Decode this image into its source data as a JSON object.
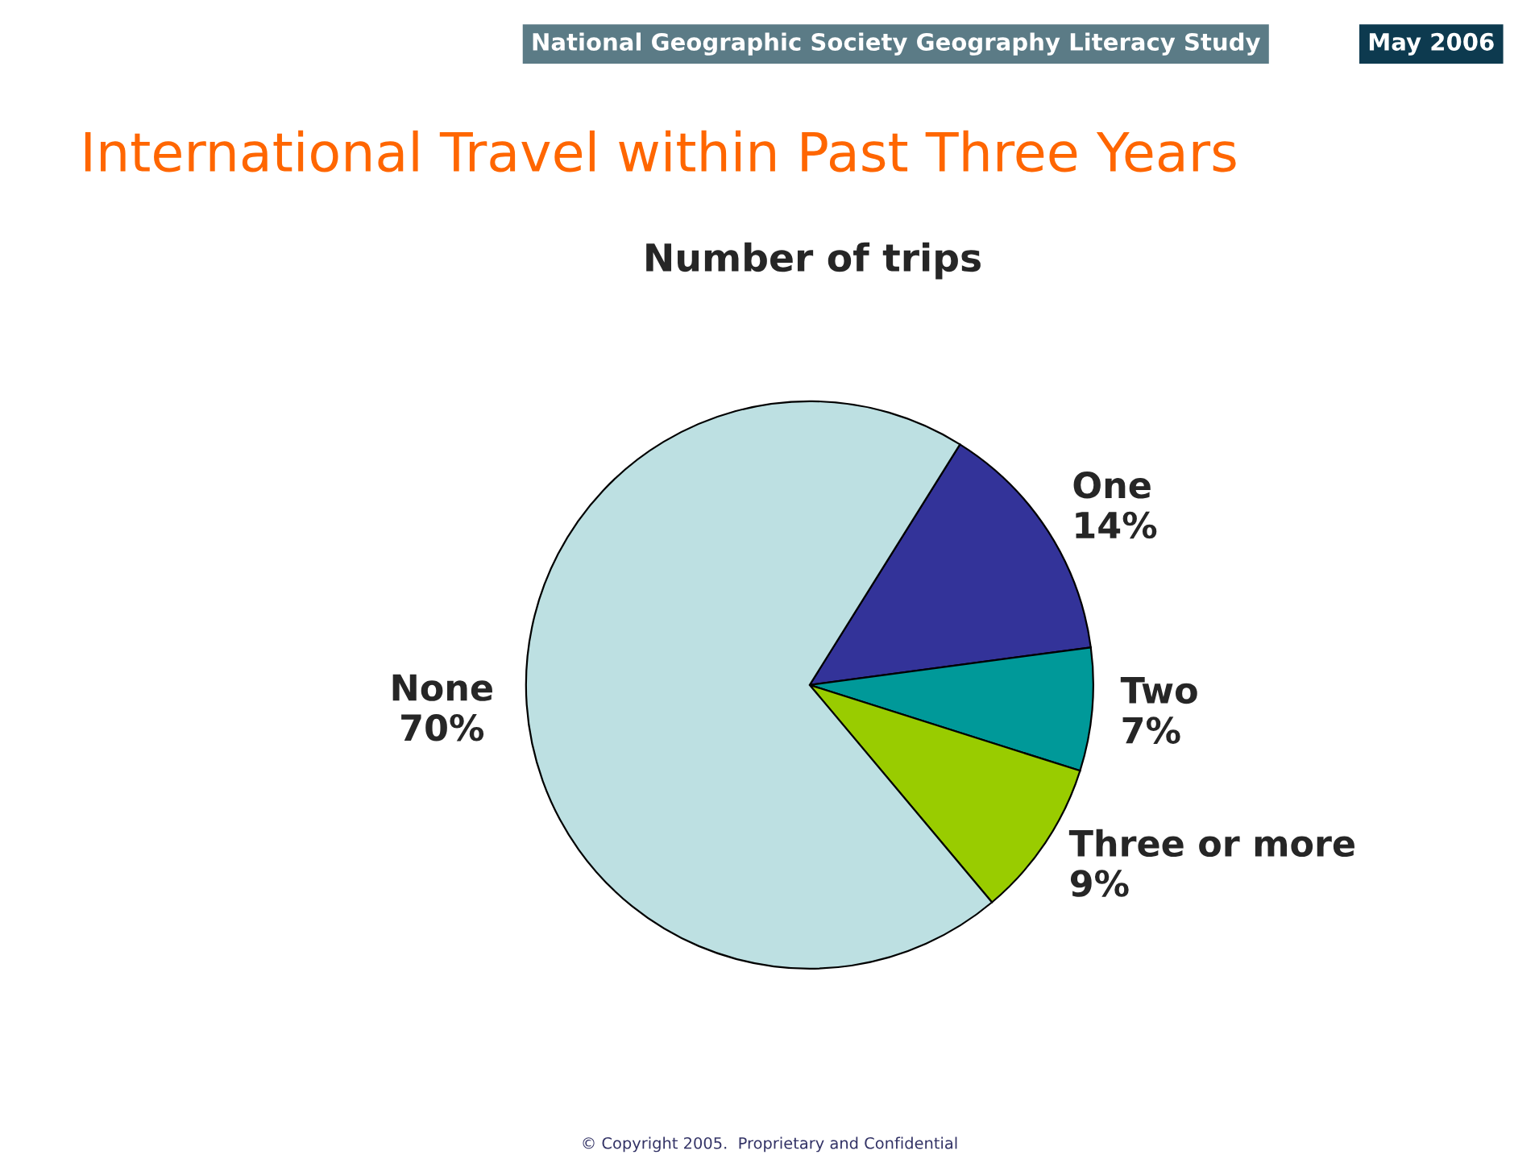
{
  "chart_data": {
    "type": "pie",
    "title": "International Travel within Past Three Years",
    "subtitle": "Number of trips",
    "categories": [
      "One",
      "Two",
      "Three or more",
      "None"
    ],
    "values": [
      14,
      7,
      9,
      70
    ],
    "colors": [
      "#333399",
      "#009999",
      "#99cc00",
      "#bde0e2"
    ],
    "value_labels": [
      "14%",
      "7%",
      "9%",
      "70%"
    ],
    "annotations": [
      "National Geographic Society Geography Literacy Study",
      "May 2006",
      "© Copyright 2005.  Proprietary and Confidential"
    ]
  }
}
